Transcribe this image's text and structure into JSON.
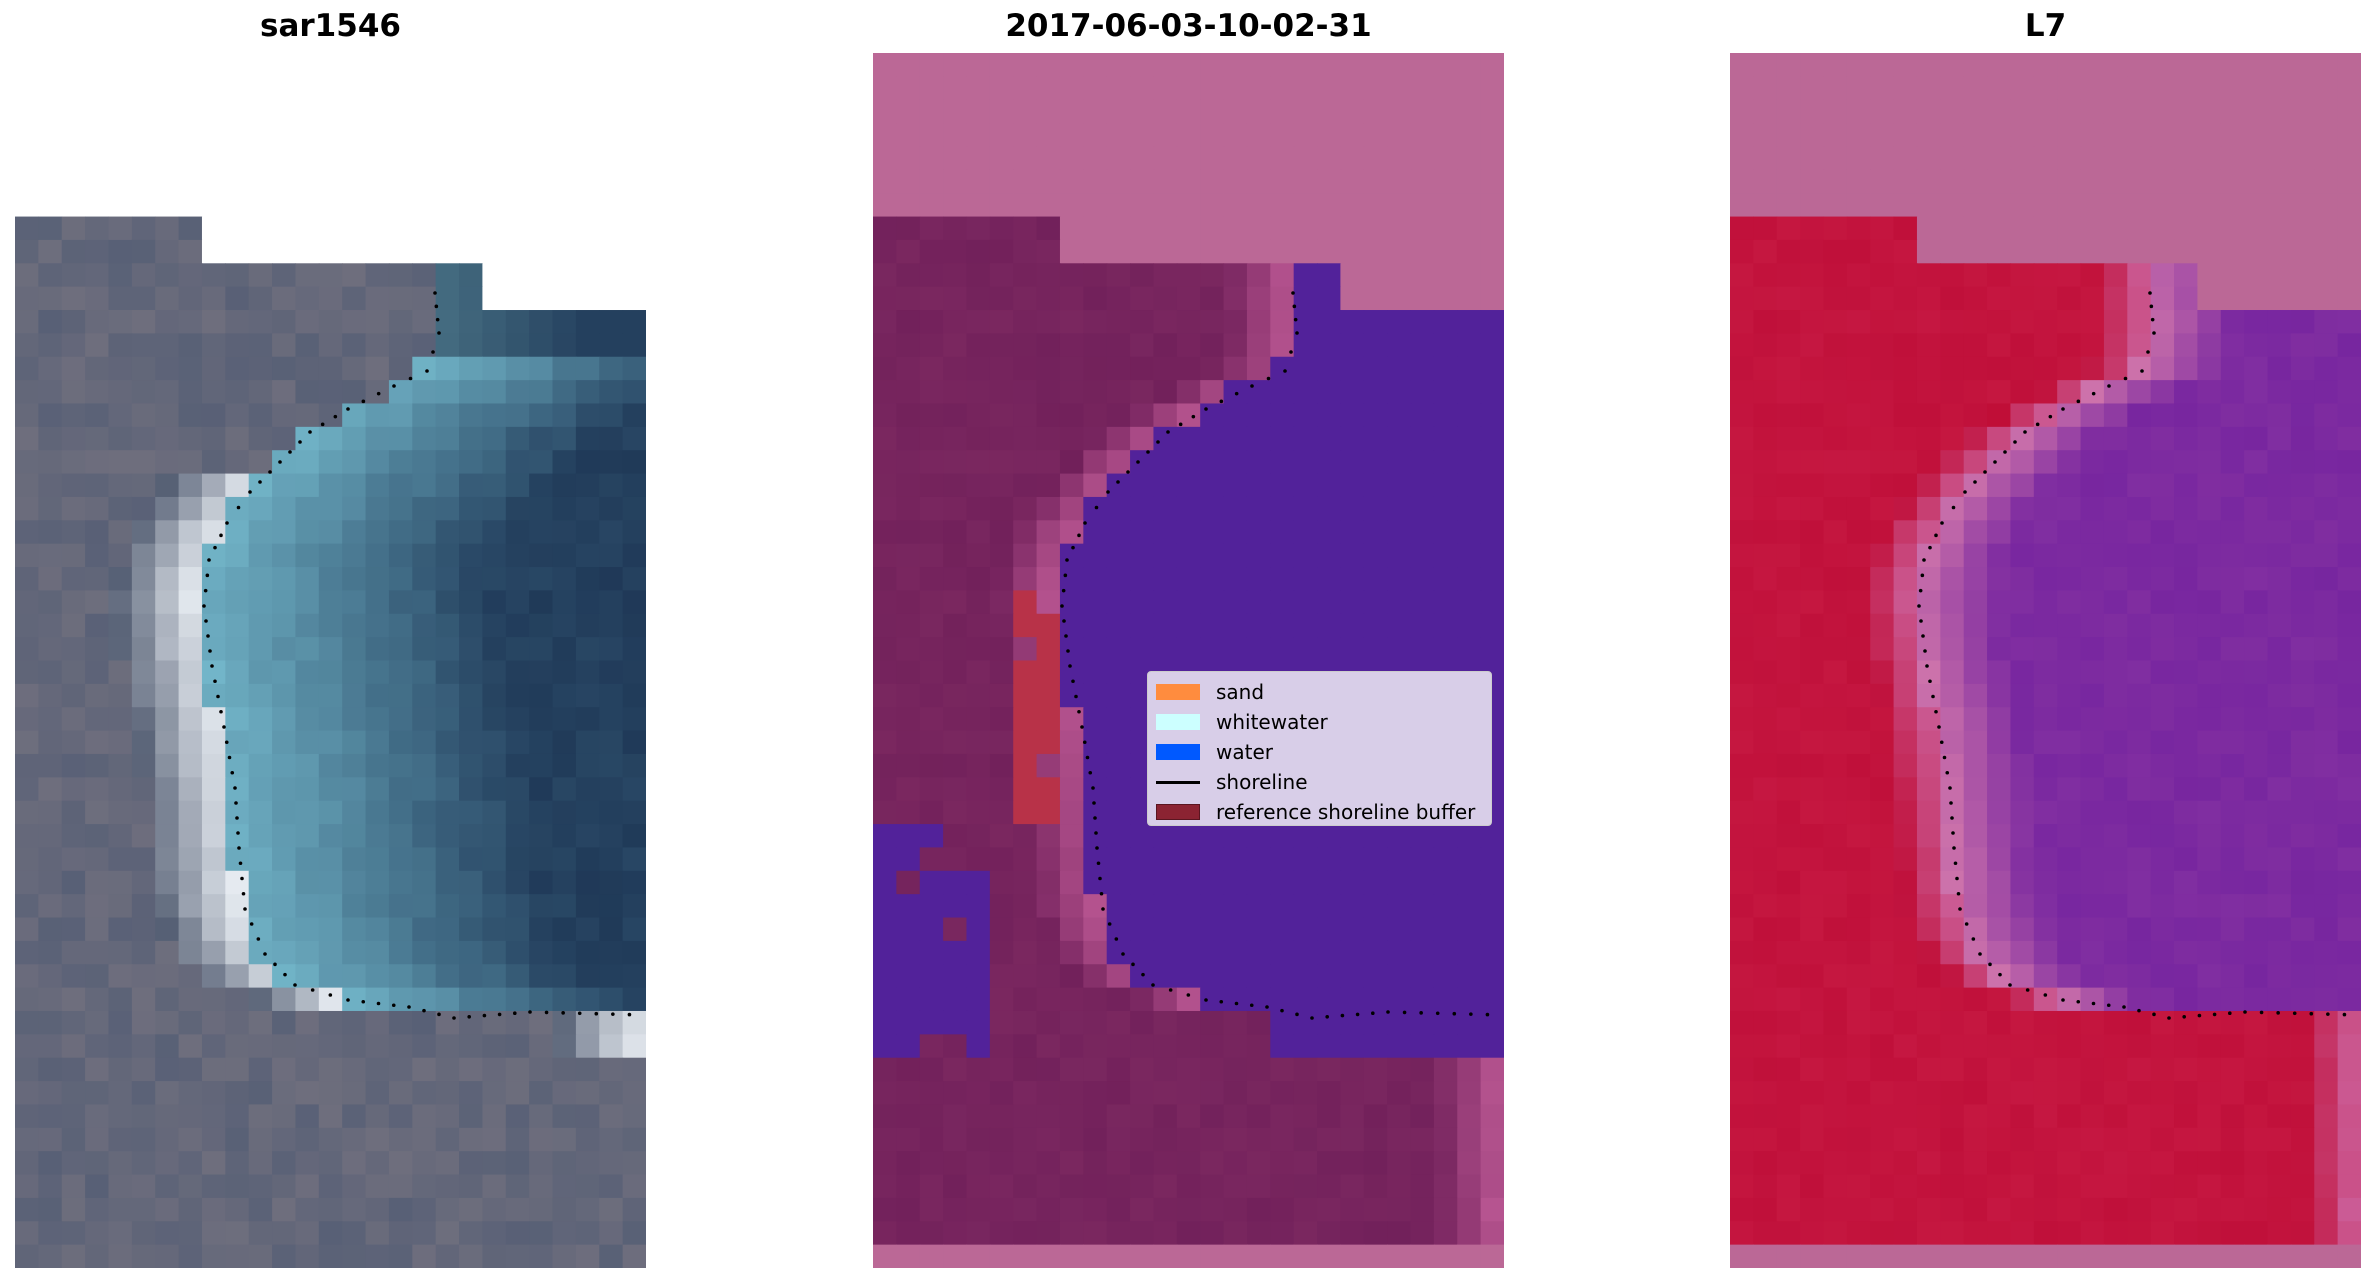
{
  "panels": [
    {
      "title": "sar1546",
      "type": "rgb"
    },
    {
      "title": "2017-06-03-10-02-31",
      "type": "classified"
    },
    {
      "title": "L7",
      "type": "index"
    }
  ],
  "legend": {
    "items": [
      {
        "label": "sand",
        "color": "#ff8c3e",
        "kind": "patch"
      },
      {
        "label": "whitewater",
        "color": "#ccffff",
        "kind": "patch"
      },
      {
        "label": "water",
        "color": "#0059ff",
        "kind": "patch"
      },
      {
        "label": "shoreline",
        "color": "#000000",
        "kind": "line"
      },
      {
        "label": "reference shoreline buffer",
        "color": "#8b2332",
        "kind": "patch"
      }
    ]
  },
  "colors": {
    "nodata_mask": "#bb6896",
    "classified_land": "#72215b",
    "classified_water": "#52229a",
    "reference_buffer": "#b83248",
    "index_land": "#c0103a",
    "index_water": "#7c2aa0"
  }
}
